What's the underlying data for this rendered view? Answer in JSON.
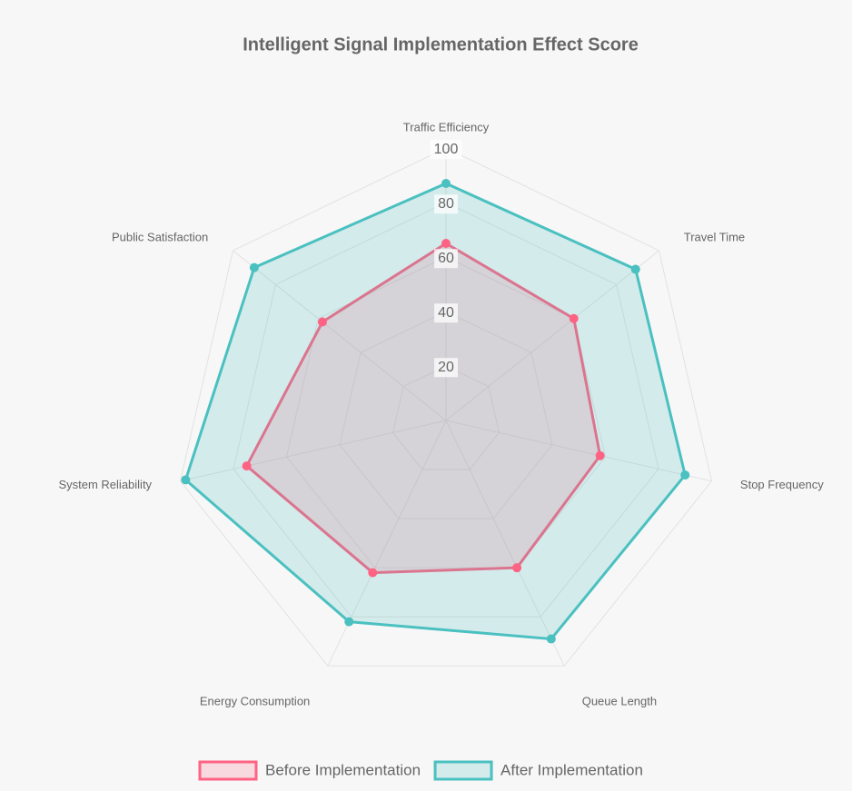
{
  "chart_data": {
    "type": "radar",
    "title": "Intelligent Signal Implementation Effect Score",
    "categories": [
      "Traffic Efficiency",
      "Travel Time",
      "Stop Frequency",
      "Queue Length",
      "Energy Consumption",
      "System Reliability",
      "Public Satisfaction"
    ],
    "series": [
      {
        "name": "Before Implementation",
        "color": "#ff6384",
        "values": [
          65,
          60,
          58,
          60,
          62,
          75,
          58
        ]
      },
      {
        "name": "After Implementation",
        "color": "#4bc0c0",
        "values": [
          87,
          89,
          90,
          89,
          82,
          98,
          90
        ]
      }
    ],
    "rlim": [
      0,
      100
    ],
    "rticks": [
      20,
      40,
      60,
      80,
      100
    ],
    "grid": true,
    "legend": "bottom"
  }
}
